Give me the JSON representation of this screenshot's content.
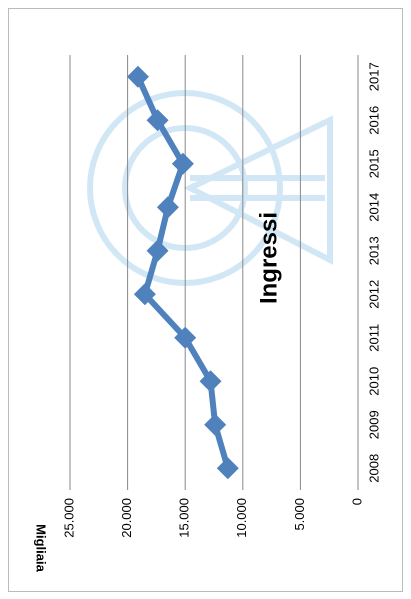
{
  "chart_data": {
    "type": "line",
    "title": "Ingressi",
    "y_label": "Migliaia",
    "categories": [
      "2008",
      "2009",
      "2010",
      "2011",
      "2012",
      "2013",
      "2014",
      "2015",
      "2016",
      "2017"
    ],
    "values": [
      11300,
      12400,
      12800,
      15000,
      18500,
      17400,
      16500,
      15200,
      17400,
      19100
    ],
    "color": "#4f81bd",
    "ylim": [
      0,
      25000
    ],
    "yticks": [
      0,
      {
        "value": 5000,
        "label": "5.000"
      },
      {
        "value": 10000,
        "label": "10.000"
      },
      {
        "value": 15000,
        "label": "15.000"
      },
      {
        "value": 20000,
        "label": "20.000"
      },
      {
        "value": 25000,
        "label": "25.000"
      }
    ],
    "grid": true
  }
}
